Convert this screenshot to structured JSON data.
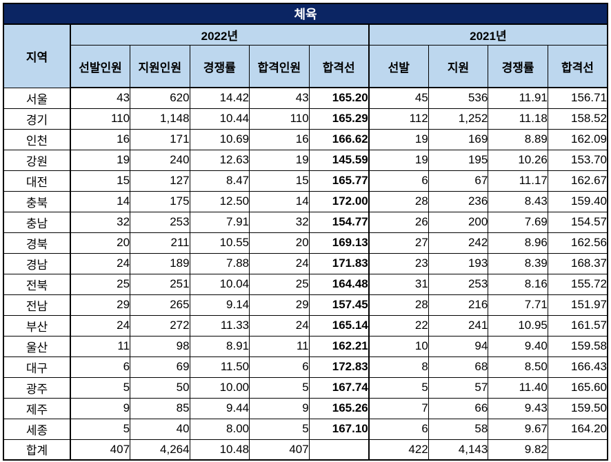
{
  "colors": {
    "title_bg": "#0b2563",
    "title_text": "#ffffff",
    "header_bg": "#bdd7ee",
    "highlight_blue": "#1b76c5",
    "border": "#000000",
    "text": "#000000"
  },
  "chart_data": {
    "type": "table",
    "title": "체육",
    "region_column": "지역",
    "year_groups": [
      {
        "label": "2022년",
        "columns": [
          "선발인원",
          "지원인원",
          "경쟁률",
          "합격인원",
          "합격선"
        ]
      },
      {
        "label": "2021년",
        "columns": [
          "선발",
          "지원",
          "경쟁률",
          "합격선"
        ]
      }
    ],
    "highlight_column": "2022년 합격선",
    "rows": [
      {
        "region": "서울",
        "values": [
          "43",
          "620",
          "14.42",
          "43",
          "165.20",
          "45",
          "536",
          "11.91",
          "156.71"
        ]
      },
      {
        "region": "경기",
        "values": [
          "110",
          "1,148",
          "10.44",
          "110",
          "165.29",
          "112",
          "1,252",
          "11.18",
          "158.52"
        ]
      },
      {
        "region": "인천",
        "values": [
          "16",
          "171",
          "10.69",
          "16",
          "166.62",
          "19",
          "169",
          "8.89",
          "162.09"
        ]
      },
      {
        "region": "강원",
        "values": [
          "19",
          "240",
          "12.63",
          "19",
          "145.59",
          "19",
          "195",
          "10.26",
          "153.70"
        ]
      },
      {
        "region": "대전",
        "values": [
          "15",
          "127",
          "8.47",
          "15",
          "165.77",
          "6",
          "67",
          "11.17",
          "162.67"
        ]
      },
      {
        "region": "충북",
        "values": [
          "14",
          "175",
          "12.50",
          "14",
          "172.00",
          "28",
          "236",
          "8.43",
          "159.40"
        ]
      },
      {
        "region": "충남",
        "values": [
          "32",
          "253",
          "7.91",
          "32",
          "154.77",
          "26",
          "200",
          "7.69",
          "154.57"
        ]
      },
      {
        "region": "경북",
        "values": [
          "20",
          "211",
          "10.55",
          "20",
          "169.13",
          "27",
          "242",
          "8.96",
          "162.56"
        ]
      },
      {
        "region": "경남",
        "values": [
          "24",
          "189",
          "7.88",
          "24",
          "171.83",
          "23",
          "193",
          "8.39",
          "168.37"
        ]
      },
      {
        "region": "전북",
        "values": [
          "25",
          "251",
          "10.04",
          "25",
          "164.48",
          "31",
          "253",
          "8.16",
          "155.72"
        ]
      },
      {
        "region": "전남",
        "values": [
          "29",
          "265",
          "9.14",
          "29",
          "157.45",
          "28",
          "216",
          "7.71",
          "151.97"
        ]
      },
      {
        "region": "부산",
        "values": [
          "24",
          "272",
          "11.33",
          "24",
          "165.14",
          "22",
          "241",
          "10.95",
          "161.57"
        ]
      },
      {
        "region": "울산",
        "values": [
          "11",
          "98",
          "8.91",
          "11",
          "162.21",
          "10",
          "94",
          "9.40",
          "159.58"
        ]
      },
      {
        "region": "대구",
        "values": [
          "6",
          "69",
          "11.50",
          "6",
          "172.83",
          "8",
          "68",
          "8.50",
          "166.43"
        ]
      },
      {
        "region": "광주",
        "values": [
          "5",
          "50",
          "10.00",
          "5",
          "167.74",
          "5",
          "57",
          "11.40",
          "165.60"
        ]
      },
      {
        "region": "제주",
        "values": [
          "9",
          "85",
          "9.44",
          "9",
          "165.26",
          "7",
          "66",
          "9.43",
          "159.50"
        ]
      },
      {
        "region": "세종",
        "values": [
          "5",
          "40",
          "8.00",
          "5",
          "167.10",
          "6",
          "58",
          "9.67",
          "164.20"
        ]
      },
      {
        "region": "합계",
        "values": [
          "407",
          "4,264",
          "10.48",
          "407",
          "",
          "422",
          "4,143",
          "9.82",
          ""
        ]
      }
    ]
  }
}
